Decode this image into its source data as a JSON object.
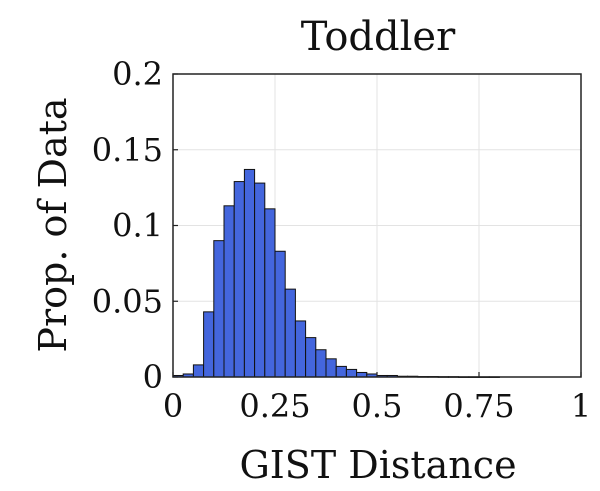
{
  "chart_data": {
    "type": "bar",
    "title": "Toddler",
    "xlabel": "GIST Distance",
    "ylabel": "Prop. of Data",
    "xlim": [
      0,
      1
    ],
    "ylim": [
      0,
      0.2
    ],
    "x_ticks": [
      "0",
      "0.25",
      "0.5",
      "0.75",
      "1"
    ],
    "y_ticks": [
      "0",
      "0.05",
      "0.1",
      "0.15",
      "0.2"
    ],
    "grid": true,
    "bin_width": 0.025,
    "bins_start": [
      0,
      0.025,
      0.05,
      0.075,
      0.1,
      0.125,
      0.15,
      0.175,
      0.2,
      0.225,
      0.25,
      0.275,
      0.3,
      0.325,
      0.35,
      0.375,
      0.4,
      0.425,
      0.45,
      0.475,
      0.5,
      0.525,
      0.55,
      0.575,
      0.6,
      0.625,
      0.65,
      0.675,
      0.7,
      0.725,
      0.75,
      0.775,
      0.8,
      0.825,
      0.85,
      0.875,
      0.9,
      0.925,
      0.95,
      0.975
    ],
    "values": [
      0.001,
      0.002,
      0.008,
      0.043,
      0.09,
      0.113,
      0.129,
      0.137,
      0.128,
      0.111,
      0.083,
      0.058,
      0.037,
      0.026,
      0.018,
      0.012,
      0.007,
      0.005,
      0.003,
      0.002,
      0.001,
      0.001,
      0.0005,
      0.0005,
      0.0003,
      0.0003,
      0.0002,
      0.0002,
      0.0001,
      0.0001,
      0.0001,
      0.0001,
      0,
      0,
      0,
      0,
      0,
      0,
      0,
      0
    ],
    "bar_color": "#4466dd",
    "edge_color": "#111111"
  }
}
